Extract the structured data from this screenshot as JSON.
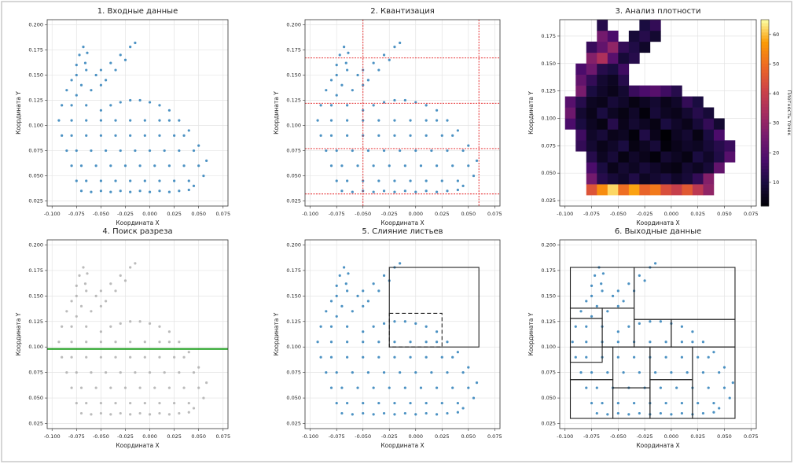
{
  "chart_data": [
    {
      "type": "scatter",
      "title": "1. Входные данные",
      "xlabel": "Координата X",
      "ylabel": "Координата Y",
      "color": "#1f77b4",
      "xlim": [
        -0.105,
        0.08
      ],
      "ylim": [
        0.02,
        0.205
      ],
      "xticks": [
        {
          "value": -0.1,
          "label": "-0.100"
        },
        -0.075,
        {
          "value": -0.05,
          "label": "-0.050"
        },
        -0.025,
        {
          "value": 0,
          "label": "0.000"
        },
        0.025,
        {
          "value": 0.05,
          "label": "0.050"
        },
        0.075
      ],
      "yticks": [
        0.025,
        {
          "value": 0.05,
          "label": "0.050"
        },
        0.075,
        {
          "value": 0.1,
          "label": "0.100"
        },
        0.125,
        {
          "value": 0.15,
          "label": "0.150"
        },
        0.175,
        {
          "value": 0.2,
          "label": "0.200"
        }
      ],
      "grid": true,
      "x": [
        -0.07,
        -0.06,
        -0.05,
        -0.04,
        -0.03,
        -0.02,
        -0.01,
        0,
        0.01,
        0.02,
        0.03,
        0.04,
        -0.05,
        -0.04,
        -0.03,
        -0.02,
        -0.01,
        0,
        0.01,
        0.02,
        0.03,
        0.04,
        0.05,
        0.058,
        0.055,
        0.045,
        -0.09,
        -0.093,
        -0.09,
        -0.085,
        -0.08,
        -0.075,
        -0.085,
        -0.08,
        -0.075,
        -0.065,
        -0.055,
        -0.05,
        -0.06,
        -0.07,
        -0.075,
        -0.072,
        -0.068,
        -0.064,
        -0.066,
        -0.05,
        -0.04,
        -0.03,
        -0.02,
        -0.015,
        -0.025,
        -0.035,
        -0.045,
        -0.065,
        -0.05,
        -0.035,
        -0.02,
        -0.005,
        0.01,
        0.025,
        0.04,
        -0.07,
        -0.055,
        -0.04,
        -0.025,
        -0.01,
        0.005,
        0.02,
        0.035,
        0.05,
        -0.075,
        -0.06,
        -0.045,
        -0.03,
        -0.015,
        0,
        0.015,
        0.03,
        0.045,
        -0.08,
        -0.065,
        -0.05,
        -0.035,
        -0.02,
        -0.005,
        0.01,
        0.025,
        0.035,
        -0.08,
        -0.065,
        -0.05,
        -0.035,
        -0.02,
        -0.005,
        0.01,
        0.02,
        -0.08,
        -0.065,
        -0.075
      ],
      "values": [
        0.035,
        0.034,
        0.035,
        0.034,
        0.035,
        0.034,
        0.035,
        0.034,
        0.035,
        0.034,
        0.035,
        0.036,
        0.115,
        0.12,
        0.123,
        0.125,
        0.125,
        0.123,
        0.12,
        0.115,
        0.105,
        0.095,
        0.08,
        0.065,
        0.05,
        0.04,
        0.12,
        0.105,
        0.09,
        0.075,
        0.06,
        0.045,
        0.135,
        0.145,
        0.15,
        0.155,
        0.15,
        0.14,
        0.135,
        0.14,
        0.16,
        0.17,
        0.178,
        0.172,
        0.162,
        0.155,
        0.162,
        0.17,
        0.178,
        0.182,
        0.165,
        0.155,
        0.145,
        0.045,
        0.045,
        0.045,
        0.045,
        0.045,
        0.045,
        0.045,
        0.045,
        0.06,
        0.06,
        0.06,
        0.06,
        0.06,
        0.06,
        0.06,
        0.06,
        0.06,
        0.075,
        0.075,
        0.075,
        0.075,
        0.075,
        0.075,
        0.075,
        0.075,
        0.075,
        0.09,
        0.09,
        0.09,
        0.09,
        0.09,
        0.09,
        0.09,
        0.09,
        0.09,
        0.105,
        0.105,
        0.105,
        0.105,
        0.105,
        0.105,
        0.105,
        0.105,
        0.12,
        0.12,
        0.13
      ]
    },
    {
      "type": "scatter",
      "title": "2. Квантизация",
      "xlabel": "Координата X",
      "ylabel": "Координата Y",
      "color": "#1f77b4",
      "xlim": [
        -0.105,
        0.08
      ],
      "ylim": [
        0.02,
        0.205
      ],
      "xticks": [
        {
          "value": -0.1,
          "label": "-0.100"
        },
        -0.075,
        {
          "value": -0.05,
          "label": "-0.050"
        },
        -0.025,
        {
          "value": 0,
          "label": "0.000"
        },
        0.025,
        {
          "value": 0.05,
          "label": "0.050"
        },
        0.075
      ],
      "yticks": [
        0.025,
        {
          "value": 0.05,
          "label": "0.050"
        },
        0.075,
        {
          "value": 0.1,
          "label": "0.100"
        },
        0.125,
        {
          "value": 0.15,
          "label": "0.150"
        },
        0.175,
        {
          "value": 0.2,
          "label": "0.200"
        }
      ],
      "grid": true,
      "line_color": "#e41a1c",
      "hlines": [
        0.167,
        0.122,
        0.077,
        0.032
      ],
      "vlines": [
        -0.05,
        0.06
      ]
    },
    {
      "type": "heatmap",
      "title": "3. Анализ плотности",
      "xlabel": "Координата X",
      "ylabel": "Координата Y",
      "colormap": "inferno",
      "xlim": [
        -0.105,
        0.08
      ],
      "ylim": [
        0.02,
        0.19
      ],
      "xticks": [
        {
          "value": -0.1,
          "label": "-0.100"
        },
        -0.075,
        {
          "value": -0.05,
          "label": "-0.050"
        },
        -0.025,
        {
          "value": 0,
          "label": "0.000"
        },
        0.025,
        {
          "value": 0.05,
          "label": "0.050"
        },
        0.075
      ],
      "yticks": [
        0.025,
        {
          "value": 0.05,
          "label": "0.050"
        },
        0.075,
        {
          "value": 0.1,
          "label": "0.100"
        },
        0.125,
        {
          "value": 0.15,
          "label": "0.150"
        },
        0.175
      ],
      "grid": true,
      "clim": [
        2,
        65
      ],
      "cbar_ticks": [
        10,
        20,
        30,
        40,
        50,
        60
      ],
      "cbar_label": "Плотность точек",
      "xbins": [
        -0.1,
        -0.09,
        -0.08,
        -0.07,
        -0.06,
        -0.05,
        -0.04,
        -0.03,
        -0.02,
        -0.01,
        0,
        0.01,
        0.02,
        0.03,
        0.04,
        0.05,
        0.06
      ],
      "ybins": [
        0.03,
        0.04,
        0.05,
        0.06,
        0.07,
        0.08,
        0.09,
        0.1,
        0.11,
        0.12,
        0.13,
        0.14,
        0.15,
        0.16,
        0.17,
        0.18,
        0.19
      ],
      "z": [
        [
          null,
          null,
          45,
          55,
          62,
          50,
          58,
          48,
          52,
          44,
          40,
          46,
          38,
          30,
          null,
          null
        ],
        [
          null,
          null,
          25,
          12,
          9,
          7,
          11,
          6,
          8,
          10,
          7,
          9,
          14,
          28,
          null,
          null
        ],
        [
          null,
          null,
          18,
          10,
          5,
          8,
          6,
          9,
          7,
          5,
          4,
          8,
          6,
          9,
          22,
          null
        ],
        [
          null,
          null,
          12,
          6,
          9,
          4,
          7,
          5,
          3,
          8,
          6,
          4,
          10,
          7,
          11,
          20
        ],
        [
          null,
          14,
          8,
          5,
          7,
          10,
          4,
          6,
          9,
          3,
          5,
          7,
          6,
          9,
          12,
          15
        ],
        [
          null,
          16,
          7,
          9,
          5,
          6,
          3,
          11,
          5,
          2,
          6,
          8,
          4,
          10,
          18,
          null
        ],
        [
          18,
          10,
          6,
          4,
          12,
          5,
          8,
          6,
          4,
          10,
          7,
          5,
          9,
          14,
          8,
          null
        ],
        [
          24,
          8,
          5,
          10,
          6,
          4,
          7,
          3,
          9,
          6,
          5,
          8,
          12,
          9,
          null,
          null
        ],
        [
          20,
          12,
          6,
          5,
          9,
          7,
          4,
          6,
          8,
          5,
          7,
          14,
          10,
          null,
          null,
          null
        ],
        [
          null,
          26,
          10,
          7,
          5,
          8,
          15,
          18,
          20,
          16,
          12,
          null,
          null,
          null,
          null,
          null
        ],
        [
          null,
          22,
          14,
          8,
          6,
          12,
          null,
          null,
          null,
          null,
          null,
          null,
          null,
          null,
          null,
          null
        ],
        [
          null,
          18,
          24,
          12,
          10,
          16,
          null,
          null,
          null,
          null,
          null,
          null,
          null,
          null,
          null,
          null
        ],
        [
          null,
          null,
          28,
          35,
          20,
          9,
          12,
          null,
          null,
          null,
          null,
          null,
          null,
          null,
          null,
          null
        ],
        [
          null,
          null,
          15,
          22,
          30,
          14,
          11,
          7,
          null,
          null,
          null,
          null,
          null,
          null,
          null,
          null
        ],
        [
          null,
          null,
          null,
          25,
          18,
          null,
          9,
          12,
          8,
          null,
          null,
          null,
          null,
          null,
          null,
          null
        ],
        [
          null,
          null,
          null,
          12,
          null,
          null,
          null,
          10,
          14,
          null,
          null,
          null,
          null,
          null,
          null,
          null
        ]
      ]
    },
    {
      "type": "scatter",
      "title": "4. Поиск разреза",
      "xlabel": "Координата X",
      "ylabel": "Координата Y",
      "color": "#aaaaaa",
      "xlim": [
        -0.105,
        0.08
      ],
      "ylim": [
        0.02,
        0.205
      ],
      "xticks": [
        {
          "value": -0.1,
          "label": "-0.100"
        },
        -0.075,
        {
          "value": -0.05,
          "label": "-0.050"
        },
        -0.025,
        {
          "value": 0,
          "label": "0.000"
        },
        0.025,
        {
          "value": 0.05,
          "label": "0.050"
        },
        0.075
      ],
      "yticks": [
        0.025,
        {
          "value": 0.05,
          "label": "0.050"
        },
        0.075,
        {
          "value": 0.1,
          "label": "0.100"
        },
        0.125,
        {
          "value": 0.15,
          "label": "0.150"
        },
        0.175,
        {
          "value": 0.2,
          "label": "0.200"
        }
      ],
      "grid": true,
      "line_color": "#1a9e1a",
      "hlines": [
        0.098
      ]
    },
    {
      "type": "scatter",
      "title": "5. Слияние листьев",
      "xlabel": "Координата X",
      "ylabel": "Координата Y",
      "color": "#1f77b4",
      "xlim": [
        -0.105,
        0.08
      ],
      "ylim": [
        0.02,
        0.205
      ],
      "xticks": [
        {
          "value": -0.1,
          "label": "-0.100"
        },
        -0.075,
        {
          "value": -0.05,
          "label": "-0.050"
        },
        -0.025,
        {
          "value": 0,
          "label": "0.000"
        },
        0.025,
        {
          "value": 0.05,
          "label": "0.050"
        },
        0.075
      ],
      "yticks": [
        0.025,
        {
          "value": 0.05,
          "label": "0.050"
        },
        0.075,
        {
          "value": 0.1,
          "label": "0.100"
        },
        0.125,
        {
          "value": 0.15,
          "label": "0.150"
        },
        0.175,
        {
          "value": 0.2,
          "label": "0.200"
        }
      ],
      "grid": true,
      "rects": [
        {
          "x0": -0.025,
          "x1": 0.06,
          "y0": 0.1,
          "y1": 0.178,
          "dashed": false
        },
        {
          "x0": -0.025,
          "x1": 0.025,
          "y0": 0.1,
          "y1": 0.133,
          "dashed": true
        },
        {
          "x0": 0.025,
          "x1": 0.06,
          "y0": 0.125,
          "y1": 0.125,
          "dashed": true
        }
      ]
    },
    {
      "type": "scatter",
      "title": "6. Выходные данные",
      "xlabel": "Координата X",
      "ylabel": "Координата Y",
      "color": "#1f77b4",
      "xlim": [
        -0.105,
        0.08
      ],
      "ylim": [
        0.02,
        0.205
      ],
      "xticks": [
        {
          "value": -0.1,
          "label": "-0.100"
        },
        -0.075,
        {
          "value": -0.05,
          "label": "-0.050"
        },
        -0.025,
        {
          "value": 0,
          "label": "0.000"
        },
        0.025,
        {
          "value": 0.05,
          "label": "0.050"
        },
        0.075
      ],
      "yticks": [
        0.025,
        {
          "value": 0.05,
          "label": "0.050"
        },
        0.075,
        {
          "value": 0.1,
          "label": "0.100"
        },
        0.125,
        {
          "value": 0.15,
          "label": "0.150"
        },
        0.175,
        {
          "value": 0.2,
          "label": "0.200"
        }
      ],
      "grid": true,
      "rects": [
        {
          "x0": -0.095,
          "x1": -0.035,
          "y0": 0.138,
          "y1": 0.178,
          "dashed": false
        },
        {
          "x0": -0.035,
          "x1": 0.06,
          "y0": 0.127,
          "y1": 0.178,
          "dashed": false
        },
        {
          "x0": -0.095,
          "x1": -0.065,
          "y0": 0.128,
          "y1": 0.138,
          "dashed": false
        },
        {
          "x0": -0.095,
          "x1": -0.065,
          "y0": 0.085,
          "y1": 0.128,
          "dashed": false
        },
        {
          "x0": -0.065,
          "x1": -0.035,
          "y0": 0.1,
          "y1": 0.138,
          "dashed": false
        },
        {
          "x0": -0.035,
          "x1": 0.0,
          "y0": 0.1,
          "y1": 0.127,
          "dashed": false
        },
        {
          "x0": 0.0,
          "x1": 0.06,
          "y0": 0.1,
          "y1": 0.127,
          "dashed": false
        },
        {
          "x0": -0.095,
          "x1": -0.055,
          "y0": 0.03,
          "y1": 0.068,
          "dashed": false
        },
        {
          "x0": -0.095,
          "x1": -0.055,
          "y0": 0.068,
          "y1": 0.1,
          "dashed": false
        },
        {
          "x0": -0.055,
          "x1": -0.02,
          "y0": 0.03,
          "y1": 0.06,
          "dashed": false
        },
        {
          "x0": -0.055,
          "x1": -0.02,
          "y0": 0.06,
          "y1": 0.1,
          "dashed": false
        },
        {
          "x0": -0.02,
          "x1": 0.02,
          "y0": 0.03,
          "y1": 0.068,
          "dashed": false
        },
        {
          "x0": -0.02,
          "x1": 0.02,
          "y0": 0.068,
          "y1": 0.1,
          "dashed": false
        },
        {
          "x0": 0.02,
          "x1": 0.06,
          "y0": 0.03,
          "y1": 0.1,
          "dashed": false
        }
      ]
    }
  ]
}
